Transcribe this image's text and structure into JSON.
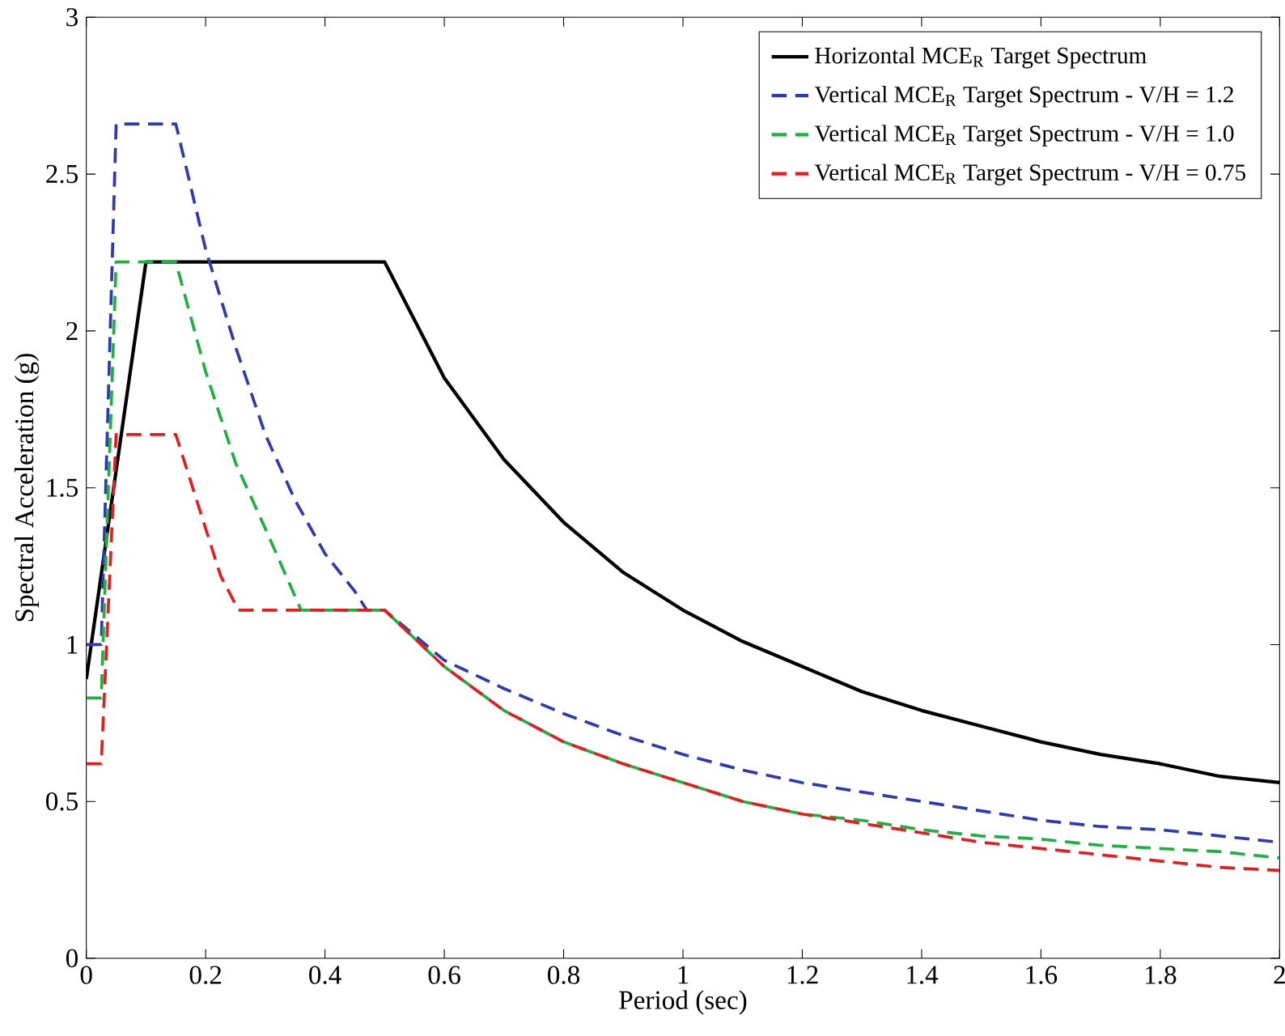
{
  "chart_data": {
    "type": "line",
    "xlabel": "Period (sec)",
    "ylabel": "Spectral Acceleration (g)",
    "xlim": [
      0,
      2
    ],
    "ylim": [
      0,
      3
    ],
    "xticks": [
      0,
      0.2,
      0.4,
      0.6,
      0.8,
      1,
      1.2,
      1.4,
      1.6,
      1.8,
      2
    ],
    "yticks": [
      0,
      0.5,
      1,
      1.5,
      2,
      2.5,
      3
    ],
    "legend": "top right",
    "grid": false,
    "marker": "none",
    "series": [
      {
        "name": "Horizontal MCE$_{R}$ Target Spectrum",
        "color": "#000000",
        "line_style": "solid",
        "x": [
          0,
          0.1,
          0.5,
          0.6,
          0.7,
          0.8,
          0.9,
          1.0,
          1.1,
          1.2,
          1.3,
          1.4,
          1.5,
          1.6,
          1.7,
          1.8,
          1.9,
          2.0
        ],
        "values": [
          0.89,
          2.22,
          2.22,
          1.85,
          1.59,
          1.39,
          1.23,
          1.11,
          1.01,
          0.93,
          0.85,
          0.79,
          0.74,
          0.69,
          0.65,
          0.62,
          0.58,
          0.56
        ]
      },
      {
        "name": "Vertical MCE$_{R}$ Target Spectrum  - V/H = 1.2",
        "color": "#2e3bb0",
        "line_style": "dashed",
        "x": [
          0,
          0.025,
          0.05,
          0.15,
          0.2,
          0.25,
          0.3,
          0.35,
          0.4,
          0.45,
          0.47,
          0.5,
          0.6,
          0.7,
          0.8,
          0.9,
          1.0,
          1.1,
          1.2,
          1.3,
          1.4,
          1.5,
          1.6,
          1.7,
          1.8,
          1.9,
          2.0
        ],
        "values": [
          1.0,
          1.0,
          2.66,
          2.66,
          2.26,
          1.95,
          1.67,
          1.46,
          1.29,
          1.17,
          1.11,
          1.11,
          0.95,
          0.86,
          0.78,
          0.71,
          0.65,
          0.6,
          0.56,
          0.53,
          0.5,
          0.47,
          0.44,
          0.42,
          0.41,
          0.39,
          0.37
        ]
      },
      {
        "name": "Vertical MCE$_{R}$ Target Spectrum  - V/H = 1.0",
        "color": "#1fb040",
        "line_style": "dashed",
        "x": [
          0,
          0.025,
          0.05,
          0.15,
          0.2,
          0.25,
          0.3,
          0.36,
          0.5,
          0.6,
          0.7,
          0.8,
          0.9,
          1.0,
          1.1,
          1.2,
          1.3,
          1.4,
          1.5,
          1.6,
          1.7,
          1.8,
          1.9,
          2.0
        ],
        "values": [
          0.83,
          0.83,
          2.22,
          2.22,
          1.87,
          1.58,
          1.37,
          1.11,
          1.11,
          0.93,
          0.79,
          0.69,
          0.62,
          0.56,
          0.5,
          0.46,
          0.44,
          0.41,
          0.39,
          0.38,
          0.36,
          0.35,
          0.34,
          0.32
        ]
      },
      {
        "name": "Vertical MCE$_{R}$ Target Spectrum  - V/H = 0.75",
        "color": "#e02020",
        "line_style": "dashed",
        "x": [
          0,
          0.025,
          0.05,
          0.15,
          0.2,
          0.225,
          0.255,
          0.5,
          0.6,
          0.7,
          0.8,
          0.9,
          1.0,
          1.1,
          1.2,
          1.3,
          1.4,
          1.5,
          1.6,
          1.7,
          1.8,
          1.9,
          2.0
        ],
        "values": [
          0.62,
          0.62,
          1.67,
          1.67,
          1.37,
          1.22,
          1.11,
          1.11,
          0.93,
          0.79,
          0.69,
          0.62,
          0.56,
          0.5,
          0.46,
          0.43,
          0.4,
          0.37,
          0.35,
          0.33,
          0.31,
          0.29,
          0.28
        ]
      }
    ]
  }
}
